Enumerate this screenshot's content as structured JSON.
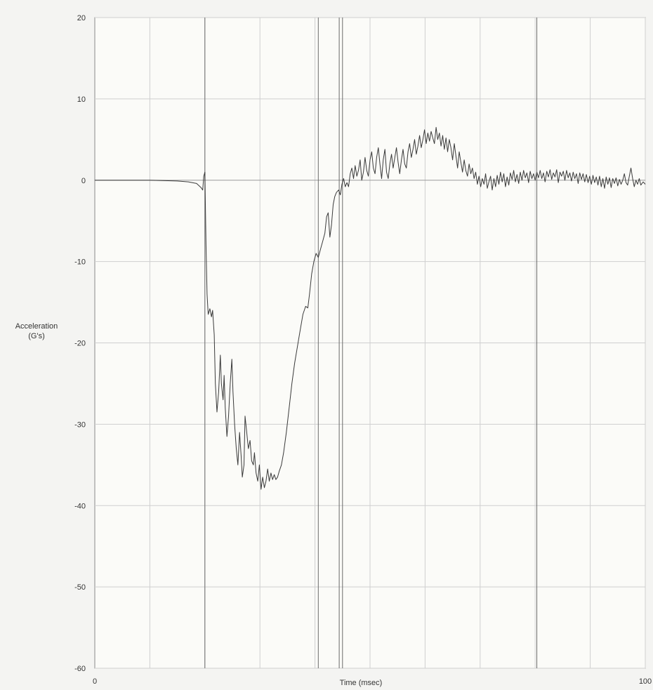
{
  "chart_data": {
    "type": "line",
    "title": "",
    "xlabel": "Time (msec)",
    "ylabel": [
      "Acceleration",
      "(G's)"
    ],
    "xlim": [
      0,
      100
    ],
    "ylim": [
      -60,
      20
    ],
    "x_tick_labels": [
      {
        "value": 0,
        "label": "0"
      },
      {
        "value": 100,
        "label": "100"
      }
    ],
    "y_ticks": [
      20,
      10,
      0,
      -10,
      -20,
      -30,
      -40,
      -50,
      -60
    ],
    "x_gridlines": [
      10,
      20,
      30,
      40,
      50,
      60,
      70,
      80,
      90,
      100
    ],
    "grid": true,
    "vertical_markers": [
      20.0,
      40.6,
      44.4,
      45.0,
      80.3
    ],
    "series": [
      {
        "color": "#3a3a3a",
        "points": [
          [
            0,
            0
          ],
          [
            5,
            0
          ],
          [
            10,
            0
          ],
          [
            15,
            -0.1
          ],
          [
            17,
            -0.2
          ],
          [
            18.5,
            -0.4
          ],
          [
            19.3,
            -0.9
          ],
          [
            19.6,
            -1.2
          ],
          [
            19.8,
            0.5
          ],
          [
            20.0,
            1.0
          ],
          [
            20.2,
            -8
          ],
          [
            20.4,
            -14
          ],
          [
            20.6,
            -16.5
          ],
          [
            20.9,
            -15.8
          ],
          [
            21.2,
            -16.8
          ],
          [
            21.4,
            -16.0
          ],
          [
            21.7,
            -19
          ],
          [
            21.9,
            -25
          ],
          [
            22.2,
            -28.5
          ],
          [
            22.5,
            -26
          ],
          [
            22.8,
            -21.5
          ],
          [
            23.0,
            -25
          ],
          [
            23.3,
            -27
          ],
          [
            23.5,
            -24
          ],
          [
            23.7,
            -28
          ],
          [
            24.0,
            -31.5
          ],
          [
            24.3,
            -29
          ],
          [
            24.6,
            -25
          ],
          [
            24.9,
            -22
          ],
          [
            25.1,
            -26
          ],
          [
            25.4,
            -30
          ],
          [
            25.7,
            -33
          ],
          [
            26.0,
            -35
          ],
          [
            26.3,
            -31
          ],
          [
            26.6,
            -34
          ],
          [
            26.8,
            -36.5
          ],
          [
            27.1,
            -35
          ],
          [
            27.3,
            -29
          ],
          [
            27.6,
            -31
          ],
          [
            27.9,
            -33
          ],
          [
            28.2,
            -32
          ],
          [
            28.5,
            -34.5
          ],
          [
            28.8,
            -35
          ],
          [
            29.0,
            -33.5
          ],
          [
            29.3,
            -36
          ],
          [
            29.6,
            -37
          ],
          [
            29.9,
            -35
          ],
          [
            30.2,
            -38
          ],
          [
            30.5,
            -36.5
          ],
          [
            30.8,
            -37.8
          ],
          [
            31.1,
            -37
          ],
          [
            31.4,
            -35.5
          ],
          [
            31.7,
            -37
          ],
          [
            32.0,
            -36
          ],
          [
            32.3,
            -36.8
          ],
          [
            32.6,
            -36.2
          ],
          [
            32.9,
            -36.8
          ],
          [
            33.2,
            -36.5
          ],
          [
            33.5,
            -35.8
          ],
          [
            33.9,
            -35
          ],
          [
            34.3,
            -33.5
          ],
          [
            34.8,
            -31
          ],
          [
            35.3,
            -28
          ],
          [
            35.8,
            -25
          ],
          [
            36.3,
            -22.5
          ],
          [
            36.8,
            -20.5
          ],
          [
            37.3,
            -18.5
          ],
          [
            37.8,
            -16.5
          ],
          [
            38.3,
            -15.5
          ],
          [
            38.7,
            -15.7
          ],
          [
            39.0,
            -14
          ],
          [
            39.4,
            -11.5
          ],
          [
            39.8,
            -10
          ],
          [
            40.2,
            -9
          ],
          [
            40.6,
            -9.5
          ],
          [
            41.0,
            -8.5
          ],
          [
            41.4,
            -7.5
          ],
          [
            41.8,
            -6.5
          ],
          [
            42.1,
            -4.5
          ],
          [
            42.4,
            -4
          ],
          [
            42.7,
            -7
          ],
          [
            43.0,
            -5.5
          ],
          [
            43.3,
            -3
          ],
          [
            43.6,
            -2
          ],
          [
            43.9,
            -1.5
          ],
          [
            44.3,
            -1.2
          ],
          [
            44.6,
            -1.8
          ],
          [
            44.9,
            -0.5
          ],
          [
            45.2,
            0.2
          ],
          [
            45.5,
            -0.8
          ],
          [
            45.8,
            -0.3
          ],
          [
            46.1,
            -0.8
          ],
          [
            46.4,
            0.8
          ],
          [
            46.7,
            1.5
          ],
          [
            47.0,
            0.2
          ],
          [
            47.3,
            1.8
          ],
          [
            47.6,
            0.5
          ],
          [
            47.9,
            1.2
          ],
          [
            48.2,
            2.5
          ],
          [
            48.5,
            0
          ],
          [
            48.8,
            1.0
          ],
          [
            49.1,
            2.8
          ],
          [
            49.4,
            1.2
          ],
          [
            49.7,
            0.5
          ],
          [
            50.0,
            2.5
          ],
          [
            50.3,
            3.5
          ],
          [
            50.6,
            1.5
          ],
          [
            50.9,
            0.8
          ],
          [
            51.2,
            2.8
          ],
          [
            51.5,
            4.0
          ],
          [
            51.8,
            2.0
          ],
          [
            52.1,
            0.2
          ],
          [
            52.4,
            2.5
          ],
          [
            52.7,
            3.8
          ],
          [
            53.0,
            1.0
          ],
          [
            53.3,
            0.2
          ],
          [
            53.6,
            2.0
          ],
          [
            53.9,
            3.2
          ],
          [
            54.2,
            1.5
          ],
          [
            54.5,
            2.8
          ],
          [
            54.8,
            4.0
          ],
          [
            55.1,
            2.2
          ],
          [
            55.4,
            0.8
          ],
          [
            55.7,
            2.5
          ],
          [
            56.0,
            3.8
          ],
          [
            56.3,
            2.0
          ],
          [
            56.6,
            1.5
          ],
          [
            56.9,
            3.5
          ],
          [
            57.2,
            4.5
          ],
          [
            57.5,
            2.8
          ],
          [
            57.8,
            3.8
          ],
          [
            58.1,
            5.0
          ],
          [
            58.4,
            3.2
          ],
          [
            58.7,
            4.2
          ],
          [
            59.0,
            5.5
          ],
          [
            59.3,
            4.0
          ],
          [
            59.6,
            5.0
          ],
          [
            59.9,
            6.2
          ],
          [
            60.2,
            4.5
          ],
          [
            60.5,
            5.8
          ],
          [
            60.8,
            4.8
          ],
          [
            61.1,
            6.0
          ],
          [
            61.4,
            5.2
          ],
          [
            61.7,
            4.5
          ],
          [
            62.0,
            6.5
          ],
          [
            62.3,
            5.0
          ],
          [
            62.6,
            5.8
          ],
          [
            62.9,
            4.2
          ],
          [
            63.2,
            5.5
          ],
          [
            63.5,
            3.8
          ],
          [
            63.8,
            5.2
          ],
          [
            64.1,
            3.5
          ],
          [
            64.4,
            5.0
          ],
          [
            64.7,
            4.0
          ],
          [
            65.0,
            2.5
          ],
          [
            65.3,
            4.5
          ],
          [
            65.6,
            3.0
          ],
          [
            65.9,
            1.5
          ],
          [
            66.2,
            3.5
          ],
          [
            66.5,
            2.2
          ],
          [
            66.8,
            1.0
          ],
          [
            67.1,
            2.5
          ],
          [
            67.4,
            1.2
          ],
          [
            67.7,
            0.5
          ],
          [
            68.0,
            2.0
          ],
          [
            68.3,
            0.8
          ],
          [
            68.6,
            1.5
          ],
          [
            68.9,
            0.2
          ],
          [
            69.2,
            1.0
          ],
          [
            69.5,
            -0.5
          ],
          [
            69.8,
            0.5
          ],
          [
            70.1,
            -0.8
          ],
          [
            70.4,
            0.2
          ],
          [
            70.7,
            -0.5
          ],
          [
            71.0,
            0.8
          ],
          [
            71.3,
            -1.0
          ],
          [
            71.6,
            -0.2
          ],
          [
            71.9,
            0.5
          ],
          [
            72.2,
            -1.2
          ],
          [
            72.5,
            0.2
          ],
          [
            72.8,
            -0.8
          ],
          [
            73.1,
            0.6
          ],
          [
            73.4,
            -0.5
          ],
          [
            73.7,
            1.0
          ],
          [
            74.0,
            -0.2
          ],
          [
            74.3,
            0.8
          ],
          [
            74.6,
            -0.8
          ],
          [
            74.9,
            0.4
          ],
          [
            75.2,
            -0.6
          ],
          [
            75.5,
            0.9
          ],
          [
            75.8,
            0.1
          ],
          [
            76.1,
            1.2
          ],
          [
            76.4,
            -0.2
          ],
          [
            76.7,
            0.7
          ],
          [
            77.0,
            -0.4
          ],
          [
            77.3,
            1.0
          ],
          [
            77.6,
            0.0
          ],
          [
            77.9,
            1.2
          ],
          [
            78.2,
            0.3
          ],
          [
            78.5,
            0.9
          ],
          [
            78.8,
            -0.3
          ],
          [
            79.1,
            1.1
          ],
          [
            79.4,
            0.2
          ],
          [
            79.7,
            0.8
          ],
          [
            80.0,
            0.0
          ],
          [
            80.3,
            1.0
          ],
          [
            80.6,
            0.3
          ],
          [
            80.9,
            1.2
          ],
          [
            81.2,
            0.2
          ],
          [
            81.5,
            0.9
          ],
          [
            81.8,
            -0.2
          ],
          [
            82.1,
            1.1
          ],
          [
            82.4,
            0.4
          ],
          [
            82.7,
            1.3
          ],
          [
            83.0,
            0.1
          ],
          [
            83.3,
            0.9
          ],
          [
            83.6,
            0.4
          ],
          [
            83.9,
            1.3
          ],
          [
            84.2,
            -0.3
          ],
          [
            84.5,
            1.0
          ],
          [
            84.8,
            0.5
          ],
          [
            85.1,
            1.1
          ],
          [
            85.4,
            0.0
          ],
          [
            85.7,
            1.2
          ],
          [
            86.0,
            0.3
          ],
          [
            86.3,
            0.9
          ],
          [
            86.6,
            -0.1
          ],
          [
            86.9,
            1.0
          ],
          [
            87.2,
            0.2
          ],
          [
            87.5,
            0.8
          ],
          [
            87.8,
            -0.4
          ],
          [
            88.1,
            0.9
          ],
          [
            88.4,
            0.1
          ],
          [
            88.7,
            0.8
          ],
          [
            89.0,
            -0.2
          ],
          [
            89.3,
            0.7
          ],
          [
            89.6,
            -0.3
          ],
          [
            89.9,
            0.5
          ],
          [
            90.2,
            -0.5
          ],
          [
            90.5,
            0.6
          ],
          [
            90.8,
            -0.3
          ],
          [
            91.1,
            0.4
          ],
          [
            91.4,
            -0.6
          ],
          [
            91.7,
            0.5
          ],
          [
            92.0,
            -0.8
          ],
          [
            92.3,
            0.2
          ],
          [
            92.6,
            -1.0
          ],
          [
            92.9,
            0.4
          ],
          [
            93.2,
            -0.5
          ],
          [
            93.5,
            0.3
          ],
          [
            93.8,
            -0.9
          ],
          [
            94.1,
            0.2
          ],
          [
            94.4,
            -0.4
          ],
          [
            94.7,
            0.3
          ],
          [
            95.0,
            -0.7
          ],
          [
            95.3,
            0.1
          ],
          [
            95.6,
            -0.5
          ],
          [
            95.9,
            0.0
          ],
          [
            96.2,
            0.8
          ],
          [
            96.5,
            -0.3
          ],
          [
            96.8,
            -0.6
          ],
          [
            97.1,
            0.5
          ],
          [
            97.4,
            1.5
          ],
          [
            97.7,
            0.2
          ],
          [
            98.0,
            -0.8
          ],
          [
            98.3,
            0.0
          ],
          [
            98.6,
            -0.5
          ],
          [
            98.9,
            0.2
          ],
          [
            99.2,
            -0.6
          ],
          [
            99.6,
            -0.2
          ],
          [
            100,
            -0.5
          ]
        ]
      }
    ]
  }
}
